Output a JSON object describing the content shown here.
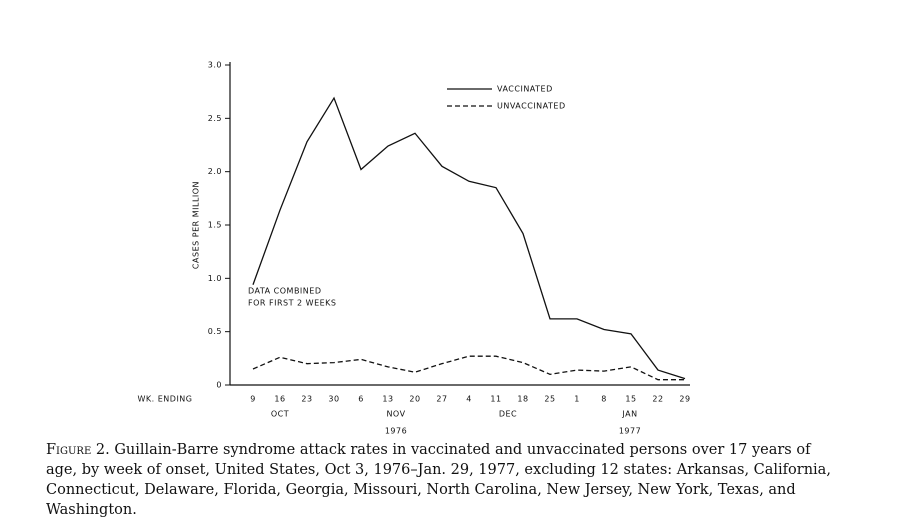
{
  "chart_data": {
    "type": "line",
    "y_label": "CASES PER MILLION",
    "x_label": "WK. ENDING",
    "categories": [
      "9",
      "16",
      "23",
      "30",
      "6",
      "13",
      "20",
      "27",
      "4",
      "11",
      "18",
      "25",
      "1",
      "8",
      "15",
      "22",
      "29"
    ],
    "months": [
      "OCT",
      "NOV",
      "DEC",
      "JAN"
    ],
    "years": [
      "1976",
      "1977"
    ],
    "series": [
      {
        "name": "VACCINATED",
        "color": "#111111",
        "line_style": "solid",
        "values": [
          0.94,
          1.64,
          2.28,
          2.69,
          2.02,
          2.24,
          2.36,
          2.05,
          1.91,
          1.85,
          1.42,
          0.62,
          0.62,
          0.52,
          0.48,
          0.14,
          0.06
        ]
      },
      {
        "name": "UNVACCINATED",
        "color": "#111111",
        "line_style": "dashed",
        "values": [
          0.15,
          0.26,
          0.2,
          0.21,
          0.24,
          0.17,
          0.12,
          0.2,
          0.27,
          0.27,
          0.21,
          0.1,
          0.14,
          0.13,
          0.17,
          0.05,
          0.05
        ]
      }
    ],
    "annotation": [
      "DATA COMBINED",
      "FOR FIRST 2 WEEKS"
    ],
    "ylim": [
      0,
      3.0
    ],
    "yticks": [
      0,
      0.5,
      {
        "value": 1,
        "label": "1.0"
      },
      1.5,
      {
        "value": 2,
        "label": "2.0"
      },
      2.5,
      {
        "value": 3,
        "label": "3.0"
      }
    ],
    "grid": false
  },
  "caption": {
    "figure": "Figure 2.",
    "text": "Guillain-Barre syndrome attack rates in vaccinated and unvaccinated persons over 17 years of age, by week of onset, United States, Oct 3, 1976–Jan. 29, 1977, excluding 12 states: Arkansas, California, Connecticut, Delaware, Florida, Georgia, Missouri, North Carolina, New Jersey, New York, Texas, and Washington."
  }
}
